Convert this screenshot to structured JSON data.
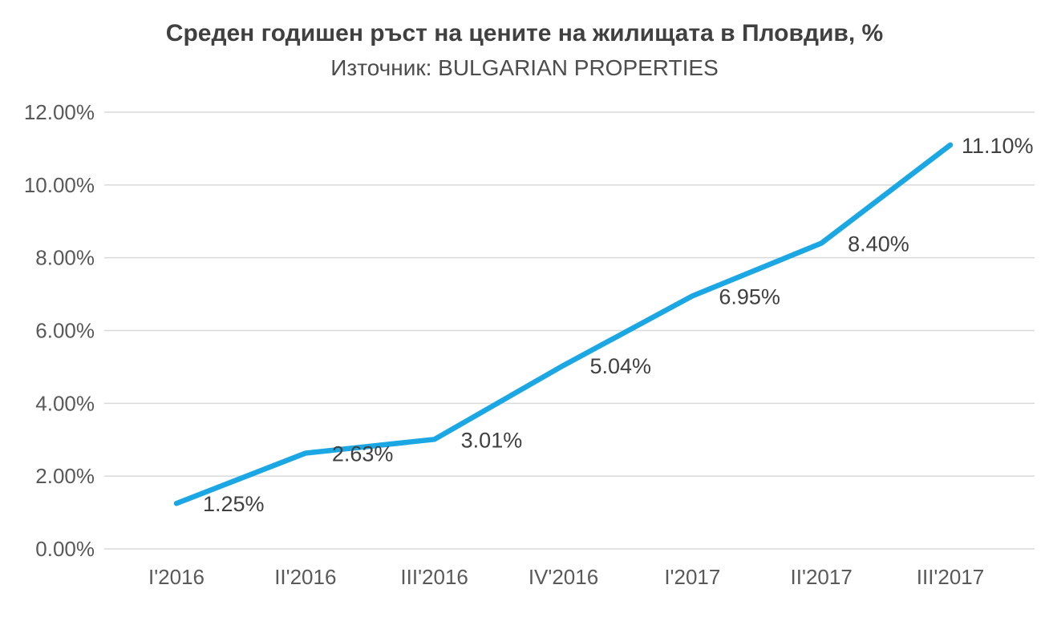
{
  "chart_data": {
    "type": "line",
    "title": "Среден годишен ръст на цените на жилищата в Пловдив, %",
    "subtitle": "Източник: BULGARIAN PROPERTIES",
    "categories": [
      "I'2016",
      "II'2016",
      "III'2016",
      "IV'2016",
      "I'2017",
      "II'2017",
      "III'2017"
    ],
    "values": [
      1.25,
      2.63,
      3.01,
      5.04,
      6.95,
      8.4,
      11.1
    ],
    "value_labels": [
      "1.25%",
      "2.63%",
      "3.01%",
      "5.04%",
      "6.95%",
      "8.40%",
      "11.10%"
    ],
    "xlabel": "",
    "ylabel": "",
    "ylim": [
      0,
      12
    ],
    "ytick_step": 2,
    "ytick_labels": [
      "0.00%",
      "2.00%",
      "4.00%",
      "6.00%",
      "8.00%",
      "10.00%",
      "12.00%"
    ],
    "grid": true,
    "legend": "none",
    "colors": {
      "line": "#1BA7E4",
      "title": "#404040",
      "subtitle": "#4D4D4D",
      "axis_labels": "#595959",
      "data_labels": "#404040",
      "gridline": "#D9D9D9",
      "background": "#FFFFFF"
    }
  }
}
